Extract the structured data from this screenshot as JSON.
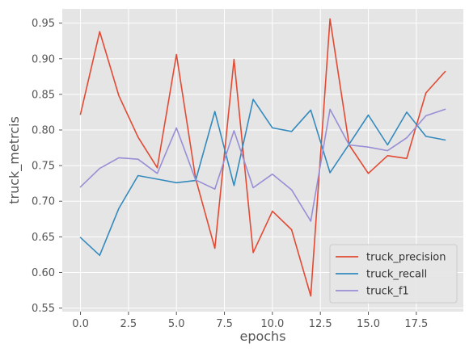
{
  "chart_data": {
    "type": "line",
    "title": "",
    "xlabel": "epochs",
    "ylabel": "truck_metrcis",
    "xlim": [
      -0.95,
      19.95
    ],
    "ylim": [
      0.545,
      0.97
    ],
    "x_ticks": [
      0.0,
      2.5,
      5.0,
      7.5,
      10.0,
      12.5,
      15.0,
      17.5
    ],
    "x_tick_labels": [
      "0.0",
      "2.5",
      "5.0",
      "7.5",
      "10.0",
      "12.5",
      "15.0",
      "17.5"
    ],
    "y_ticks": [
      0.55,
      0.6,
      0.65,
      0.7,
      0.75,
      0.8,
      0.85,
      0.9,
      0.95
    ],
    "y_tick_labels": [
      "0.55",
      "0.60",
      "0.65",
      "0.70",
      "0.75",
      "0.80",
      "0.85",
      "0.90",
      "0.95"
    ],
    "grid": true,
    "legend_position": "lower-right",
    "x": [
      0,
      1,
      2,
      3,
      4,
      5,
      6,
      7,
      8,
      9,
      10,
      11,
      12,
      13,
      14,
      15,
      16,
      17,
      18,
      19
    ],
    "series": [
      {
        "name": "truck_precision",
        "color": "#E24A33",
        "values": [
          0.822,
          0.938,
          0.848,
          0.79,
          0.747,
          0.906,
          0.732,
          0.634,
          0.899,
          0.628,
          0.686,
          0.66,
          0.567,
          0.956,
          0.779,
          0.739,
          0.764,
          0.76,
          0.852,
          0.882
        ]
      },
      {
        "name": "truck_recall",
        "color": "#348ABD",
        "values": [
          0.649,
          0.624,
          0.69,
          0.736,
          0.731,
          0.726,
          0.729,
          0.826,
          0.722,
          0.843,
          0.803,
          0.798,
          0.828,
          0.74,
          0.78,
          0.821,
          0.779,
          0.825,
          0.791,
          0.786
        ]
      },
      {
        "name": "truck_f1",
        "color": "#988ED5",
        "values": [
          0.72,
          0.746,
          0.761,
          0.759,
          0.739,
          0.803,
          0.73,
          0.717,
          0.799,
          0.719,
          0.738,
          0.716,
          0.672,
          0.829,
          0.779,
          0.776,
          0.771,
          0.789,
          0.82,
          0.829
        ]
      }
    ]
  }
}
